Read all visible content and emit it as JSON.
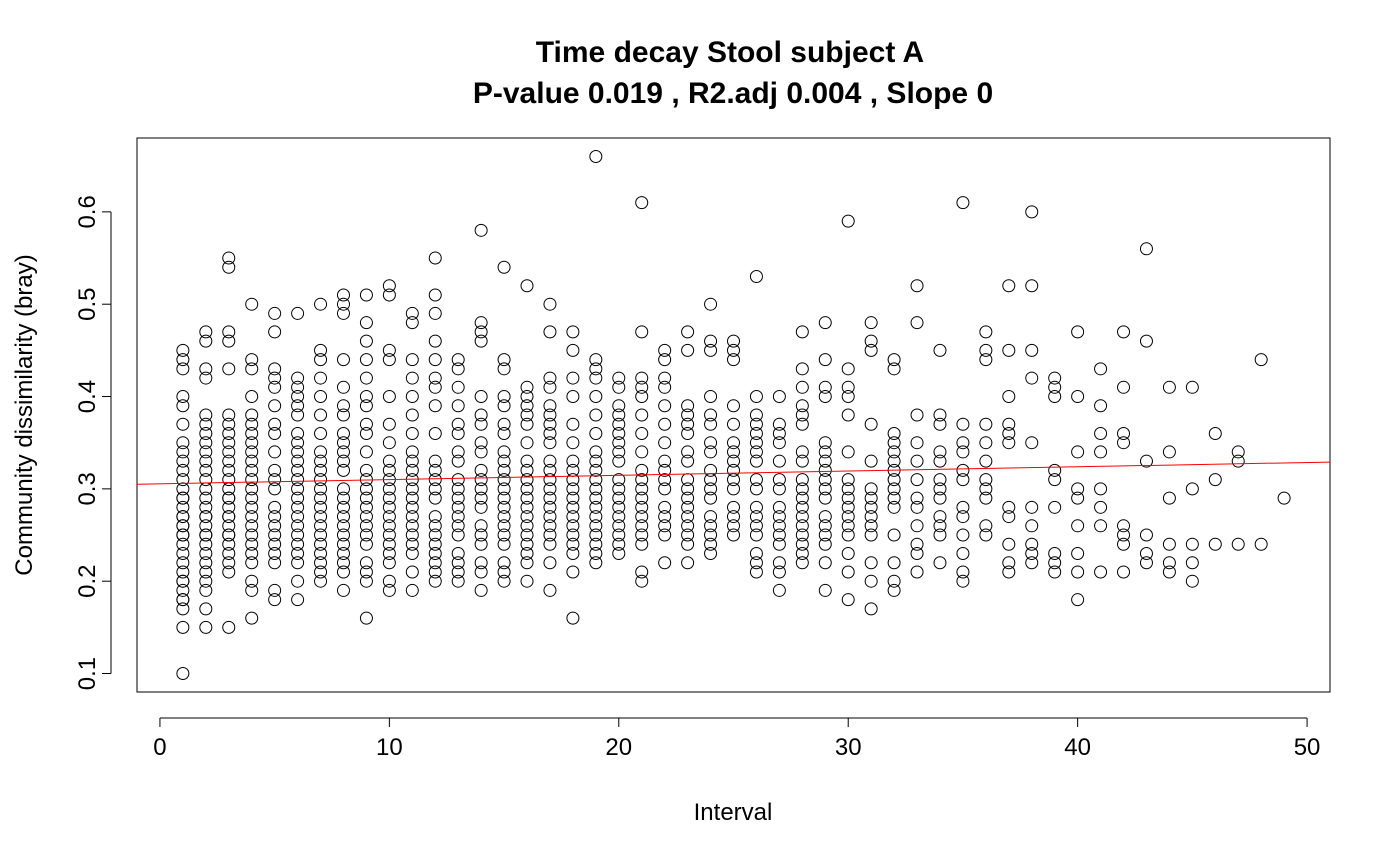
{
  "chart_data": {
    "type": "scatter",
    "title": "Time decay Stool subject A",
    "subtitle": "P-value 0.019 , R2.adj 0.004 , Slope 0",
    "xlabel": "Interval",
    "ylabel": "Community dissimilarity (bray)",
    "xlim": [
      -1,
      51
    ],
    "ylim": [
      0.08,
      0.68
    ],
    "xticks": [
      0,
      10,
      20,
      30,
      40,
      50
    ],
    "xtick_labels": [
      "0",
      "10",
      "20",
      "30",
      "40",
      "50"
    ],
    "yticks": [
      0.1,
      0.2,
      0.3,
      0.4,
      0.5,
      0.6
    ],
    "ytick_labels": [
      "0.1",
      "0.2",
      "0.3",
      "0.4",
      "0.5",
      "0.6"
    ],
    "grid": false,
    "point_style": "open-circle",
    "point_color": "#000000",
    "trend_line": {
      "color": "#ff0000",
      "x": [
        -1,
        51
      ],
      "y": [
        0.305,
        0.329
      ]
    },
    "columns": [
      {
        "x": 1,
        "y": [
          0.1,
          0.15,
          0.17,
          0.18,
          0.18,
          0.19,
          0.2,
          0.2,
          0.21,
          0.22,
          0.23,
          0.24,
          0.25,
          0.25,
          0.26,
          0.26,
          0.27,
          0.27,
          0.28,
          0.29,
          0.29,
          0.3,
          0.31,
          0.32,
          0.33,
          0.34,
          0.35,
          0.37,
          0.39,
          0.4,
          0.43,
          0.44,
          0.45
        ]
      },
      {
        "x": 2,
        "y": [
          0.15,
          0.17,
          0.19,
          0.2,
          0.21,
          0.22,
          0.23,
          0.24,
          0.25,
          0.25,
          0.26,
          0.27,
          0.27,
          0.28,
          0.29,
          0.3,
          0.31,
          0.32,
          0.33,
          0.34,
          0.35,
          0.36,
          0.37,
          0.38,
          0.42,
          0.43,
          0.46,
          0.47
        ]
      },
      {
        "x": 3,
        "y": [
          0.15,
          0.21,
          0.22,
          0.23,
          0.24,
          0.25,
          0.25,
          0.26,
          0.27,
          0.27,
          0.28,
          0.29,
          0.29,
          0.3,
          0.31,
          0.32,
          0.33,
          0.34,
          0.35,
          0.36,
          0.37,
          0.38,
          0.43,
          0.46,
          0.47,
          0.54,
          0.55
        ]
      },
      {
        "x": 4,
        "y": [
          0.16,
          0.19,
          0.2,
          0.22,
          0.23,
          0.24,
          0.25,
          0.26,
          0.27,
          0.28,
          0.29,
          0.3,
          0.31,
          0.32,
          0.33,
          0.34,
          0.35,
          0.36,
          0.37,
          0.38,
          0.4,
          0.43,
          0.44,
          0.5
        ]
      },
      {
        "x": 5,
        "y": [
          0.18,
          0.19,
          0.22,
          0.23,
          0.24,
          0.25,
          0.26,
          0.27,
          0.28,
          0.3,
          0.31,
          0.32,
          0.34,
          0.36,
          0.37,
          0.39,
          0.41,
          0.42,
          0.43,
          0.47,
          0.49
        ]
      },
      {
        "x": 6,
        "y": [
          0.18,
          0.2,
          0.22,
          0.23,
          0.24,
          0.25,
          0.26,
          0.27,
          0.28,
          0.29,
          0.3,
          0.31,
          0.32,
          0.33,
          0.34,
          0.35,
          0.36,
          0.38,
          0.39,
          0.4,
          0.41,
          0.42,
          0.49
        ]
      },
      {
        "x": 7,
        "y": [
          0.2,
          0.21,
          0.22,
          0.23,
          0.24,
          0.25,
          0.26,
          0.27,
          0.28,
          0.29,
          0.3,
          0.31,
          0.32,
          0.33,
          0.34,
          0.36,
          0.38,
          0.4,
          0.42,
          0.44,
          0.45,
          0.5
        ]
      },
      {
        "x": 8,
        "y": [
          0.19,
          0.21,
          0.22,
          0.23,
          0.24,
          0.25,
          0.26,
          0.27,
          0.28,
          0.29,
          0.3,
          0.32,
          0.33,
          0.34,
          0.35,
          0.36,
          0.38,
          0.39,
          0.41,
          0.44,
          0.49,
          0.5,
          0.51
        ]
      },
      {
        "x": 9,
        "y": [
          0.16,
          0.2,
          0.21,
          0.22,
          0.24,
          0.25,
          0.26,
          0.27,
          0.28,
          0.29,
          0.3,
          0.31,
          0.32,
          0.34,
          0.36,
          0.37,
          0.39,
          0.4,
          0.42,
          0.44,
          0.46,
          0.48,
          0.51
        ]
      },
      {
        "x": 10,
        "y": [
          0.19,
          0.2,
          0.22,
          0.23,
          0.24,
          0.25,
          0.26,
          0.27,
          0.28,
          0.29,
          0.3,
          0.31,
          0.32,
          0.33,
          0.35,
          0.37,
          0.4,
          0.44,
          0.45,
          0.51,
          0.52
        ]
      },
      {
        "x": 11,
        "y": [
          0.19,
          0.21,
          0.23,
          0.24,
          0.25,
          0.26,
          0.27,
          0.28,
          0.29,
          0.3,
          0.31,
          0.32,
          0.33,
          0.34,
          0.36,
          0.38,
          0.4,
          0.42,
          0.44,
          0.48,
          0.49
        ]
      },
      {
        "x": 12,
        "y": [
          0.2,
          0.21,
          0.22,
          0.23,
          0.24,
          0.25,
          0.26,
          0.27,
          0.29,
          0.3,
          0.31,
          0.32,
          0.33,
          0.36,
          0.39,
          0.41,
          0.42,
          0.44,
          0.46,
          0.49,
          0.51,
          0.55
        ]
      },
      {
        "x": 13,
        "y": [
          0.2,
          0.21,
          0.22,
          0.23,
          0.25,
          0.26,
          0.27,
          0.28,
          0.29,
          0.3,
          0.31,
          0.33,
          0.34,
          0.36,
          0.37,
          0.39,
          0.41,
          0.43,
          0.44
        ]
      },
      {
        "x": 14,
        "y": [
          0.19,
          0.21,
          0.22,
          0.24,
          0.25,
          0.26,
          0.28,
          0.29,
          0.3,
          0.31,
          0.32,
          0.34,
          0.35,
          0.37,
          0.38,
          0.4,
          0.46,
          0.47,
          0.48,
          0.58
        ]
      },
      {
        "x": 15,
        "y": [
          0.2,
          0.21,
          0.22,
          0.24,
          0.25,
          0.26,
          0.27,
          0.28,
          0.29,
          0.3,
          0.31,
          0.32,
          0.33,
          0.34,
          0.36,
          0.37,
          0.39,
          0.4,
          0.43,
          0.44,
          0.54
        ]
      },
      {
        "x": 16,
        "y": [
          0.2,
          0.22,
          0.23,
          0.24,
          0.25,
          0.26,
          0.27,
          0.28,
          0.29,
          0.3,
          0.31,
          0.32,
          0.33,
          0.35,
          0.37,
          0.38,
          0.39,
          0.4,
          0.41,
          0.52
        ]
      },
      {
        "x": 17,
        "y": [
          0.19,
          0.22,
          0.24,
          0.25,
          0.26,
          0.27,
          0.28,
          0.29,
          0.3,
          0.31,
          0.32,
          0.33,
          0.35,
          0.36,
          0.37,
          0.38,
          0.39,
          0.41,
          0.42,
          0.47,
          0.5
        ]
      },
      {
        "x": 18,
        "y": [
          0.16,
          0.21,
          0.23,
          0.24,
          0.25,
          0.26,
          0.27,
          0.28,
          0.29,
          0.3,
          0.31,
          0.32,
          0.33,
          0.35,
          0.37,
          0.4,
          0.42,
          0.45,
          0.47
        ]
      },
      {
        "x": 19,
        "y": [
          0.22,
          0.23,
          0.24,
          0.25,
          0.26,
          0.27,
          0.28,
          0.29,
          0.3,
          0.31,
          0.32,
          0.33,
          0.34,
          0.36,
          0.38,
          0.4,
          0.42,
          0.43,
          0.44,
          0.66
        ]
      },
      {
        "x": 20,
        "y": [
          0.23,
          0.24,
          0.25,
          0.26,
          0.27,
          0.28,
          0.29,
          0.3,
          0.31,
          0.33,
          0.34,
          0.35,
          0.36,
          0.37,
          0.38,
          0.39,
          0.41,
          0.42
        ]
      },
      {
        "x": 21,
        "y": [
          0.2,
          0.21,
          0.24,
          0.25,
          0.26,
          0.27,
          0.28,
          0.29,
          0.3,
          0.31,
          0.32,
          0.34,
          0.36,
          0.38,
          0.4,
          0.41,
          0.42,
          0.47,
          0.61
        ]
      },
      {
        "x": 22,
        "y": [
          0.22,
          0.25,
          0.26,
          0.27,
          0.28,
          0.3,
          0.31,
          0.32,
          0.33,
          0.35,
          0.37,
          0.39,
          0.41,
          0.42,
          0.44,
          0.45
        ]
      },
      {
        "x": 23,
        "y": [
          0.22,
          0.24,
          0.25,
          0.26,
          0.27,
          0.28,
          0.29,
          0.3,
          0.31,
          0.33,
          0.34,
          0.36,
          0.37,
          0.38,
          0.39,
          0.45,
          0.47
        ]
      },
      {
        "x": 24,
        "y": [
          0.23,
          0.24,
          0.25,
          0.26,
          0.27,
          0.29,
          0.3,
          0.31,
          0.32,
          0.34,
          0.35,
          0.37,
          0.38,
          0.4,
          0.45,
          0.46,
          0.5
        ]
      },
      {
        "x": 25,
        "y": [
          0.25,
          0.26,
          0.27,
          0.28,
          0.3,
          0.31,
          0.32,
          0.33,
          0.34,
          0.35,
          0.37,
          0.39,
          0.44,
          0.45,
          0.46
        ]
      },
      {
        "x": 26,
        "y": [
          0.21,
          0.22,
          0.23,
          0.25,
          0.26,
          0.27,
          0.28,
          0.3,
          0.31,
          0.33,
          0.34,
          0.35,
          0.36,
          0.37,
          0.38,
          0.4,
          0.53
        ]
      },
      {
        "x": 27,
        "y": [
          0.19,
          0.21,
          0.22,
          0.24,
          0.25,
          0.26,
          0.27,
          0.28,
          0.3,
          0.31,
          0.33,
          0.35,
          0.36,
          0.37,
          0.4
        ]
      },
      {
        "x": 28,
        "y": [
          0.22,
          0.23,
          0.24,
          0.25,
          0.26,
          0.27,
          0.28,
          0.29,
          0.3,
          0.31,
          0.33,
          0.34,
          0.37,
          0.38,
          0.39,
          0.41,
          0.43,
          0.47
        ]
      },
      {
        "x": 29,
        "y": [
          0.19,
          0.22,
          0.24,
          0.25,
          0.26,
          0.27,
          0.29,
          0.3,
          0.31,
          0.32,
          0.33,
          0.34,
          0.35,
          0.4,
          0.41,
          0.44,
          0.48
        ]
      },
      {
        "x": 30,
        "y": [
          0.18,
          0.21,
          0.23,
          0.25,
          0.26,
          0.27,
          0.28,
          0.29,
          0.3,
          0.31,
          0.34,
          0.38,
          0.4,
          0.41,
          0.43,
          0.59
        ]
      },
      {
        "x": 31,
        "y": [
          0.17,
          0.2,
          0.22,
          0.25,
          0.26,
          0.27,
          0.28,
          0.29,
          0.3,
          0.33,
          0.37,
          0.45,
          0.46,
          0.48
        ]
      },
      {
        "x": 32,
        "y": [
          0.19,
          0.2,
          0.22,
          0.25,
          0.28,
          0.29,
          0.3,
          0.31,
          0.32,
          0.33,
          0.34,
          0.35,
          0.36,
          0.43,
          0.44
        ]
      },
      {
        "x": 33,
        "y": [
          0.21,
          0.23,
          0.24,
          0.26,
          0.28,
          0.29,
          0.31,
          0.33,
          0.35,
          0.38,
          0.48,
          0.52
        ]
      },
      {
        "x": 34,
        "y": [
          0.22,
          0.25,
          0.26,
          0.27,
          0.29,
          0.3,
          0.31,
          0.33,
          0.34,
          0.37,
          0.38,
          0.45
        ]
      },
      {
        "x": 35,
        "y": [
          0.2,
          0.21,
          0.23,
          0.25,
          0.27,
          0.28,
          0.31,
          0.32,
          0.34,
          0.35,
          0.37,
          0.61
        ]
      },
      {
        "x": 36,
        "y": [
          0.25,
          0.26,
          0.29,
          0.3,
          0.31,
          0.33,
          0.35,
          0.37,
          0.44,
          0.45,
          0.47
        ]
      },
      {
        "x": 37,
        "y": [
          0.21,
          0.22,
          0.24,
          0.27,
          0.28,
          0.35,
          0.36,
          0.37,
          0.4,
          0.45,
          0.52
        ]
      },
      {
        "x": 38,
        "y": [
          0.22,
          0.23,
          0.24,
          0.26,
          0.28,
          0.35,
          0.42,
          0.45,
          0.52,
          0.6
        ]
      },
      {
        "x": 39,
        "y": [
          0.21,
          0.22,
          0.23,
          0.28,
          0.31,
          0.32,
          0.4,
          0.41,
          0.42
        ]
      },
      {
        "x": 40,
        "y": [
          0.18,
          0.21,
          0.23,
          0.26,
          0.29,
          0.3,
          0.34,
          0.4,
          0.47
        ]
      },
      {
        "x": 41,
        "y": [
          0.21,
          0.26,
          0.28,
          0.3,
          0.34,
          0.36,
          0.39,
          0.43
        ]
      },
      {
        "x": 42,
        "y": [
          0.21,
          0.24,
          0.25,
          0.26,
          0.35,
          0.36,
          0.41,
          0.47
        ]
      },
      {
        "x": 43,
        "y": [
          0.22,
          0.23,
          0.25,
          0.33,
          0.46,
          0.56
        ]
      },
      {
        "x": 44,
        "y": [
          0.21,
          0.22,
          0.24,
          0.29,
          0.34,
          0.41
        ]
      },
      {
        "x": 45,
        "y": [
          0.2,
          0.22,
          0.24,
          0.3,
          0.41
        ]
      },
      {
        "x": 46,
        "y": [
          0.24,
          0.31,
          0.36
        ]
      },
      {
        "x": 47,
        "y": [
          0.24,
          0.33,
          0.34
        ]
      },
      {
        "x": 48,
        "y": [
          0.24,
          0.44
        ]
      },
      {
        "x": 49,
        "y": [
          0.29
        ]
      }
    ]
  }
}
